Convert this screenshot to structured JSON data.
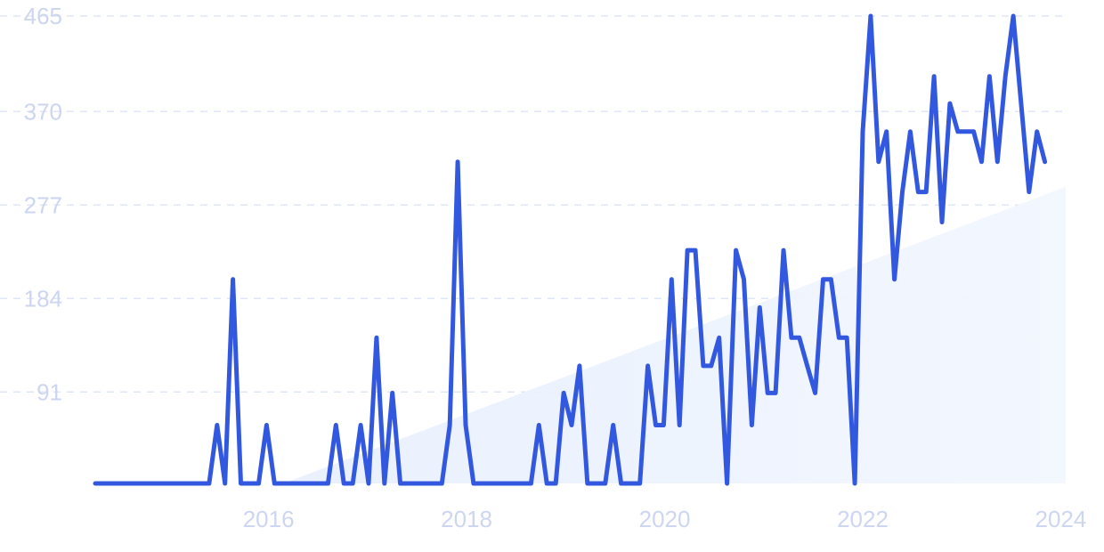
{
  "chart_data": {
    "type": "line",
    "title": "",
    "xlabel": "",
    "ylabel": "",
    "x_tick_labels": [
      "2016",
      "2018",
      "2020",
      "2022",
      "2024"
    ],
    "y_tick_labels": [
      "91",
      "184",
      "277",
      "370",
      "465"
    ],
    "y_ticks": [
      91,
      184,
      277,
      370,
      465
    ],
    "x_ticks": [
      2016,
      2018,
      2020,
      2022,
      2024
    ],
    "xlim": [
      2014.25,
      2024.05
    ],
    "ylim": [
      0,
      465
    ],
    "grid": true,
    "legend": "none",
    "colors": {
      "line": "#3358e0",
      "trend_fill": "#e7effd",
      "grid": "#dfe6f6",
      "ticks": "#cdd6f0"
    },
    "series": [
      {
        "values": [
          [
            2014.25,
            0
          ],
          [
            2015.4,
            0
          ],
          [
            2015.48,
            58
          ],
          [
            2015.56,
            0
          ],
          [
            2015.64,
            203
          ],
          [
            2015.72,
            0
          ],
          [
            2015.9,
            0
          ],
          [
            2015.98,
            58
          ],
          [
            2016.06,
            0
          ],
          [
            2016.6,
            0
          ],
          [
            2016.68,
            58
          ],
          [
            2016.76,
            0
          ],
          [
            2016.85,
            0
          ],
          [
            2016.93,
            58
          ],
          [
            2017.01,
            0
          ],
          [
            2017.09,
            145
          ],
          [
            2017.17,
            0
          ],
          [
            2017.25,
            90
          ],
          [
            2017.33,
            0
          ],
          [
            2017.75,
            0
          ],
          [
            2017.83,
            58
          ],
          [
            2017.91,
            320
          ],
          [
            2017.99,
            58
          ],
          [
            2018.07,
            0
          ],
          [
            2018.65,
            0
          ],
          [
            2018.73,
            58
          ],
          [
            2018.81,
            0
          ],
          [
            2018.9,
            0
          ],
          [
            2018.98,
            90
          ],
          [
            2019.06,
            58
          ],
          [
            2019.14,
            117
          ],
          [
            2019.22,
            0
          ],
          [
            2019.4,
            0
          ],
          [
            2019.48,
            58
          ],
          [
            2019.56,
            0
          ],
          [
            2019.75,
            0
          ],
          [
            2019.83,
            117
          ],
          [
            2019.91,
            58
          ],
          [
            2019.99,
            58
          ],
          [
            2020.07,
            203
          ],
          [
            2020.15,
            58
          ],
          [
            2020.23,
            232
          ],
          [
            2020.31,
            232
          ],
          [
            2020.39,
            117
          ],
          [
            2020.47,
            117
          ],
          [
            2020.55,
            145
          ],
          [
            2020.63,
            0
          ],
          [
            2020.72,
            232
          ],
          [
            2020.8,
            203
          ],
          [
            2020.88,
            58
          ],
          [
            2020.96,
            175
          ],
          [
            2021.04,
            90
          ],
          [
            2021.12,
            90
          ],
          [
            2021.2,
            232
          ],
          [
            2021.28,
            145
          ],
          [
            2021.36,
            145
          ],
          [
            2021.44,
            117
          ],
          [
            2021.52,
            90
          ],
          [
            2021.6,
            203
          ],
          [
            2021.68,
            203
          ],
          [
            2021.76,
            145
          ],
          [
            2021.84,
            145
          ],
          [
            2021.92,
            0
          ],
          [
            2022.0,
            350
          ],
          [
            2022.08,
            465
          ],
          [
            2022.16,
            320
          ],
          [
            2022.24,
            350
          ],
          [
            2022.32,
            203
          ],
          [
            2022.4,
            290
          ],
          [
            2022.48,
            350
          ],
          [
            2022.56,
            290
          ],
          [
            2022.64,
            290
          ],
          [
            2022.72,
            405
          ],
          [
            2022.8,
            260
          ],
          [
            2022.88,
            378
          ],
          [
            2022.96,
            350
          ],
          [
            2023.04,
            350
          ],
          [
            2023.12,
            350
          ],
          [
            2023.2,
            320
          ],
          [
            2023.28,
            405
          ],
          [
            2023.36,
            320
          ],
          [
            2023.44,
            405
          ],
          [
            2023.52,
            465
          ],
          [
            2023.6,
            378
          ],
          [
            2023.68,
            290
          ],
          [
            2023.76,
            350
          ],
          [
            2023.84,
            320
          ]
        ]
      }
    ],
    "trend": {
      "start": [
        2016.15,
        0
      ],
      "end": [
        2024.05,
        295
      ]
    }
  }
}
